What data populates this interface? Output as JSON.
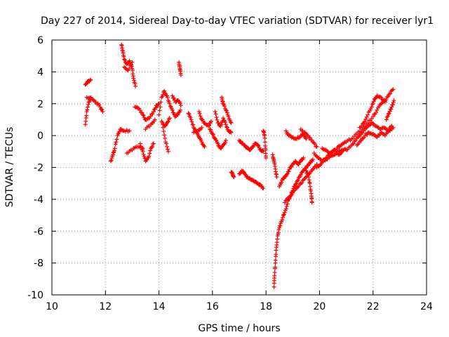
{
  "chart_data": {
    "type": "scatter",
    "title": "Day 227 of 2014, Sidereal Day-to-day VTEC variation (SDTVAR) for receiver lyr1",
    "xlabel": "GPS time / hours",
    "ylabel": "SDTVAR / TECUs",
    "xlim": [
      10,
      24
    ],
    "ylim": [
      -10,
      6
    ],
    "xticks": [
      10,
      12,
      14,
      16,
      18,
      20,
      22,
      24
    ],
    "yticks": [
      -10,
      -8,
      -6,
      -4,
      -2,
      0,
      2,
      4,
      6
    ],
    "grid": true,
    "marker": "+",
    "color": "#ff0000",
    "series": [
      {
        "name": "SDTVAR",
        "segments": [
          [
            [
              11.25,
              0.7
            ],
            [
              11.3,
              1.5
            ],
            [
              11.38,
              2.1
            ],
            [
              11.45,
              2.4
            ]
          ],
          [
            [
              11.25,
              3.2
            ],
            [
              11.35,
              3.4
            ],
            [
              11.45,
              3.5
            ]
          ],
          [
            [
              11.3,
              2.4
            ],
            [
              11.5,
              2.3
            ],
            [
              11.65,
              2.1
            ],
            [
              11.8,
              1.8
            ],
            [
              11.9,
              1.5
            ]
          ],
          [
            [
              12.2,
              -1.6
            ],
            [
              12.28,
              -1.2
            ],
            [
              12.35,
              -0.8
            ],
            [
              12.45,
              0.0
            ],
            [
              12.55,
              0.4
            ],
            [
              12.7,
              0.3
            ],
            [
              12.9,
              0.3
            ]
          ],
          [
            [
              12.6,
              5.7
            ],
            [
              12.65,
              5.3
            ],
            [
              12.7,
              4.8
            ],
            [
              12.8,
              4.5
            ],
            [
              12.9,
              4.7
            ],
            [
              13.0,
              4.2
            ],
            [
              13.05,
              3.6
            ],
            [
              13.12,
              3.1
            ]
          ],
          [
            [
              12.7,
              4.3
            ],
            [
              12.85,
              4.1
            ],
            [
              13.0,
              4.6
            ]
          ],
          [
            [
              12.8,
              -1.1
            ],
            [
              13.0,
              -0.9
            ],
            [
              13.2,
              -0.7
            ],
            [
              13.4,
              -0.8
            ]
          ],
          [
            [
              13.3,
              -0.5
            ],
            [
              13.4,
              -1.0
            ],
            [
              13.5,
              -1.6
            ],
            [
              13.6,
              -1.4
            ],
            [
              13.7,
              -0.8
            ],
            [
              13.8,
              -0.5
            ]
          ],
          [
            [
              13.1,
              1.8
            ],
            [
              13.25,
              1.7
            ],
            [
              13.4,
              1.3
            ],
            [
              13.5,
              1.0
            ],
            [
              13.65,
              1.1
            ],
            [
              13.8,
              1.5
            ],
            [
              13.9,
              1.9
            ],
            [
              14.0,
              2.0
            ]
          ],
          [
            [
              13.5,
              0.4
            ],
            [
              13.7,
              0.7
            ],
            [
              13.85,
              1.0
            ]
          ],
          [
            [
              14.0,
              1.3
            ],
            [
              14.1,
              2.4
            ],
            [
              14.2,
              2.8
            ],
            [
              14.3,
              2.5
            ],
            [
              14.4,
              2.0
            ],
            [
              14.5,
              1.6
            ],
            [
              14.6,
              1.2
            ],
            [
              14.7,
              1.3
            ],
            [
              14.8,
              1.6
            ]
          ],
          [
            [
              14.1,
              0.9
            ],
            [
              14.2,
              0.6
            ],
            [
              14.3,
              0.8
            ],
            [
              14.4,
              1.1
            ]
          ],
          [
            [
              14.15,
              0.5
            ],
            [
              14.25,
              -0.4
            ],
            [
              14.35,
              -1.0
            ]
          ],
          [
            [
              14.5,
              2.5
            ],
            [
              14.62,
              2.1
            ],
            [
              14.72,
              2.2
            ],
            [
              14.82,
              1.9
            ]
          ],
          [
            [
              14.75,
              4.6
            ],
            [
              14.78,
              4.2
            ],
            [
              14.82,
              3.8
            ]
          ],
          [
            [
              15.1,
              1.4
            ],
            [
              15.2,
              1.0
            ],
            [
              15.3,
              0.5
            ],
            [
              15.4,
              0.2
            ],
            [
              15.5,
              -0.1
            ],
            [
              15.6,
              -0.4
            ],
            [
              15.7,
              -0.7
            ]
          ],
          [
            [
              15.3,
              0.2
            ],
            [
              15.45,
              0.3
            ],
            [
              15.6,
              0.5
            ]
          ],
          [
            [
              15.5,
              1.5
            ],
            [
              15.6,
              1.0
            ],
            [
              15.7,
              0.8
            ],
            [
              15.85,
              0.6
            ],
            [
              15.95,
              0.9
            ]
          ],
          [
            [
              15.9,
              0.4
            ],
            [
              16.0,
              0.1
            ],
            [
              16.1,
              -0.2
            ],
            [
              16.2,
              -0.5
            ],
            [
              16.3,
              -0.8
            ],
            [
              16.4,
              -0.6
            ],
            [
              16.5,
              -0.3
            ]
          ],
          [
            [
              16.1,
              1.5
            ],
            [
              16.2,
              0.8
            ],
            [
              16.3,
              0.6
            ],
            [
              16.4,
              1.1
            ],
            [
              16.5,
              0.7
            ],
            [
              16.6,
              0.3
            ],
            [
              16.7,
              0.2
            ]
          ],
          [
            [
              16.35,
              2.4
            ],
            [
              16.4,
              2.0
            ],
            [
              16.5,
              1.6
            ],
            [
              16.6,
              1.2
            ],
            [
              16.7,
              0.8
            ]
          ],
          [
            [
              16.7,
              -2.3
            ],
            [
              16.75,
              -2.4
            ],
            [
              16.8,
              -2.6
            ]
          ],
          [
            [
              17.0,
              -0.3
            ],
            [
              17.1,
              -0.5
            ],
            [
              17.2,
              -0.6
            ],
            [
              17.3,
              -0.8
            ],
            [
              17.4,
              -0.9
            ],
            [
              17.5,
              -0.7
            ],
            [
              17.6,
              -0.5
            ],
            [
              17.7,
              -0.6
            ],
            [
              17.8,
              -0.9
            ],
            [
              17.9,
              -1.0
            ]
          ],
          [
            [
              17.9,
              0.3
            ],
            [
              17.95,
              0.0
            ],
            [
              17.98,
              -0.8
            ],
            [
              18.0,
              -1.4
            ]
          ],
          [
            [
              17.0,
              -2.4
            ],
            [
              17.1,
              -2.2
            ],
            [
              17.2,
              -2.4
            ],
            [
              17.3,
              -2.6
            ],
            [
              17.4,
              -2.7
            ],
            [
              17.5,
              -2.8
            ],
            [
              17.6,
              -2.9
            ],
            [
              17.7,
              -3.0
            ],
            [
              17.8,
              -3.1
            ],
            [
              17.9,
              -3.3
            ]
          ],
          [
            [
              18.25,
              -1.2
            ],
            [
              18.3,
              -1.6
            ],
            [
              18.35,
              -2.1
            ],
            [
              18.4,
              -2.6
            ]
          ],
          [
            [
              18.3,
              -9.5
            ],
            [
              18.32,
              -8.8
            ],
            [
              18.35,
              -8.0
            ],
            [
              18.38,
              -7.2
            ],
            [
              18.42,
              -6.5
            ],
            [
              18.48,
              -5.9
            ],
            [
              18.55,
              -5.5
            ],
            [
              18.65,
              -5.0
            ],
            [
              18.75,
              -4.6
            ],
            [
              18.85,
              -4.0
            ],
            [
              18.95,
              -3.6
            ],
            [
              19.05,
              -3.2
            ],
            [
              19.15,
              -2.9
            ],
            [
              19.25,
              -2.6
            ],
            [
              19.35,
              -2.3
            ],
            [
              19.45,
              -2.1
            ],
            [
              19.55,
              -1.9
            ],
            [
              19.65,
              -1.7
            ],
            [
              19.75,
              -1.5
            ]
          ],
          [
            [
              18.5,
              -3.2
            ],
            [
              18.6,
              -2.8
            ],
            [
              18.7,
              -2.6
            ],
            [
              18.8,
              -2.4
            ],
            [
              18.9,
              -2.0
            ],
            [
              19.0,
              -1.8
            ],
            [
              19.1,
              -1.6
            ],
            [
              19.2,
              -1.8
            ],
            [
              19.3,
              -1.6
            ],
            [
              19.4,
              -1.4
            ]
          ],
          [
            [
              18.7,
              -4.2
            ],
            [
              18.85,
              -3.9
            ],
            [
              19.0,
              -3.6
            ],
            [
              19.15,
              -3.3
            ],
            [
              19.3,
              -3.0
            ],
            [
              19.45,
              -2.7
            ],
            [
              19.6,
              -2.4
            ],
            [
              19.75,
              -2.1
            ],
            [
              19.9,
              -1.8
            ]
          ],
          [
            [
              19.5,
              -2.2
            ],
            [
              19.6,
              -2.6
            ],
            [
              19.65,
              -3.2
            ],
            [
              19.7,
              -3.8
            ],
            [
              19.72,
              -4.2
            ]
          ],
          [
            [
              18.75,
              0.3
            ],
            [
              18.85,
              0.0
            ],
            [
              19.0,
              -0.1
            ],
            [
              19.15,
              -0.2
            ],
            [
              19.3,
              0.0
            ],
            [
              19.4,
              0.1
            ],
            [
              19.5,
              -0.2
            ]
          ],
          [
            [
              19.3,
              0.4
            ],
            [
              19.45,
              0.2
            ],
            [
              19.6,
              -0.1
            ],
            [
              19.75,
              -0.4
            ],
            [
              19.9,
              -0.7
            ]
          ],
          [
            [
              19.8,
              -1.1
            ],
            [
              19.95,
              -1.4
            ],
            [
              20.1,
              -1.6
            ],
            [
              20.25,
              -1.5
            ],
            [
              20.4,
              -1.3
            ],
            [
              20.55,
              -1.2
            ],
            [
              20.7,
              -1.0
            ],
            [
              20.85,
              -0.9
            ],
            [
              21.0,
              -0.9
            ]
          ],
          [
            [
              19.9,
              -2.0
            ],
            [
              20.05,
              -1.8
            ],
            [
              20.2,
              -1.5
            ],
            [
              20.35,
              -1.2
            ],
            [
              20.5,
              -1.0
            ],
            [
              20.65,
              -0.8
            ],
            [
              20.8,
              -0.6
            ],
            [
              20.95,
              -0.4
            ]
          ],
          [
            [
              20.1,
              -0.8
            ],
            [
              20.25,
              -0.9
            ],
            [
              20.4,
              -1.1
            ],
            [
              20.55,
              -0.9
            ],
            [
              20.7,
              -1.2
            ],
            [
              20.85,
              -1.0
            ]
          ],
          [
            [
              21.0,
              -0.9
            ],
            [
              21.2,
              -0.6
            ],
            [
              21.35,
              -0.3
            ],
            [
              21.5,
              0.0
            ],
            [
              21.65,
              0.3
            ],
            [
              21.8,
              0.6
            ],
            [
              21.95,
              0.8
            ],
            [
              22.1,
              0.6
            ],
            [
              22.25,
              0.4
            ],
            [
              22.4,
              0.5
            ],
            [
              22.55,
              0.3
            ],
            [
              22.7,
              0.6
            ]
          ],
          [
            [
              21.0,
              -0.4
            ],
            [
              21.2,
              -0.2
            ],
            [
              21.4,
              0.1
            ],
            [
              21.6,
              0.4
            ],
            [
              21.8,
              0.8
            ],
            [
              22.0,
              1.2
            ],
            [
              22.15,
              1.6
            ],
            [
              22.3,
              2.0
            ],
            [
              22.45,
              2.2
            ],
            [
              22.6,
              2.6
            ],
            [
              22.75,
              2.9
            ]
          ],
          [
            [
              21.5,
              0.5
            ],
            [
              21.65,
              0.8
            ],
            [
              21.8,
              1.3
            ],
            [
              21.95,
              1.8
            ],
            [
              22.05,
              2.3
            ],
            [
              22.15,
              2.5
            ],
            [
              22.3,
              2.4
            ],
            [
              22.45,
              2.1
            ]
          ],
          [
            [
              21.4,
              -0.6
            ],
            [
              21.55,
              -0.3
            ],
            [
              21.7,
              0.0
            ],
            [
              21.85,
              0.2
            ],
            [
              22.0,
              0.1
            ],
            [
              22.15,
              -0.1
            ],
            [
              22.3,
              0.2
            ],
            [
              22.45,
              0.0
            ],
            [
              22.6,
              0.3
            ],
            [
              22.75,
              0.5
            ]
          ],
          [
            [
              22.5,
              1.0
            ],
            [
              22.6,
              1.4
            ],
            [
              22.7,
              1.8
            ],
            [
              22.78,
              2.2
            ]
          ]
        ]
      }
    ]
  }
}
